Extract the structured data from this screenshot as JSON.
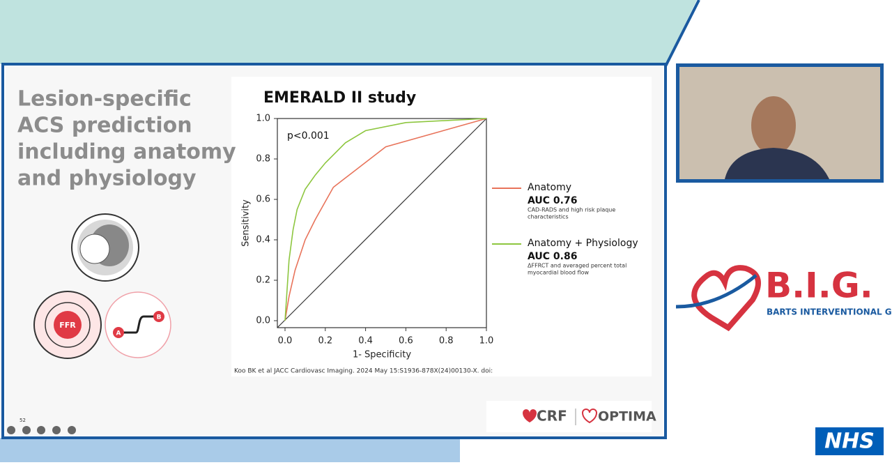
{
  "slide": {
    "title_lines": [
      "Lesion-specific",
      "ACS prediction",
      "including anatomy",
      "and physiology"
    ],
    "number": "52",
    "icon_labels": [
      "FFR",
      "A",
      "B"
    ],
    "citation": "Koo BK et al  JACC Cardiovasc Imaging. 2024 May 15:S1936-878X(24)00130-X. doi:",
    "footer_logos": [
      "CRF",
      "OPTIMA"
    ]
  },
  "chart_data": {
    "type": "line",
    "title": "EMERALD II study",
    "annotation": "p<0.001",
    "x_label": "1- Specificity",
    "y_label": "Sensitivity",
    "xlim": [
      0,
      1
    ],
    "ylim": [
      0,
      1
    ],
    "xticks": [
      {
        "value": 0,
        "label": "0.0"
      },
      0.2,
      0.4,
      0.6,
      0.8,
      {
        "value": 1,
        "label": "1.0"
      }
    ],
    "yticks": [
      {
        "value": 0,
        "label": "0.0"
      },
      0.2,
      0.4,
      0.6,
      0.8,
      {
        "value": 1,
        "label": "1.0"
      }
    ],
    "series": [
      {
        "name": "Anatomy",
        "color": "#e8735a",
        "auc": "AUC 0.76",
        "note_lines": [
          "CAD-RADS and high risk plaque",
          "characteristics"
        ],
        "x": [
          0,
          0.02,
          0.05,
          0.1,
          0.15,
          0.24,
          0.5,
          1
        ],
        "values": [
          0,
          0.12,
          0.25,
          0.4,
          0.5,
          0.66,
          0.86,
          1
        ]
      },
      {
        "name": "Anatomy + Physiology",
        "color": "#8dc63f",
        "auc": "AUC 0.86",
        "note_lines": [
          "ΔFFRCT and averaged percent total",
          "myocardial blood flow"
        ],
        "x": [
          0,
          0.01,
          0.02,
          0.04,
          0.06,
          0.1,
          0.15,
          0.2,
          0.3,
          0.4,
          0.6,
          0.8,
          1
        ],
        "values": [
          0,
          0.15,
          0.3,
          0.45,
          0.55,
          0.65,
          0.72,
          0.78,
          0.88,
          0.94,
          0.98,
          0.99,
          1
        ]
      }
    ]
  },
  "sidebar": {
    "logo_main": "B.I.G.",
    "logo_sub": "BARTS INTERVENTIONAL GROUP",
    "nhs": "NHS"
  }
}
